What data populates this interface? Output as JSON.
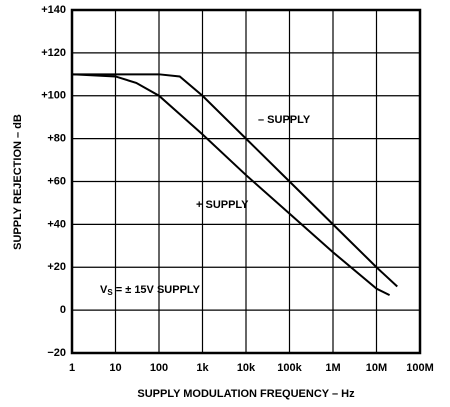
{
  "chart_data": {
    "type": "line",
    "ylabel": "SUPPLY REJECTION – dB",
    "xlabel": "SUPPLY MODULATION FREQUENCY – Hz",
    "xscale": "log",
    "grid": true,
    "xlim": [
      1,
      100000000
    ],
    "xticks": [
      1,
      10,
      100,
      {
        "value": 1000,
        "label": "1k"
      },
      {
        "value": 10000,
        "label": "10k"
      },
      {
        "value": 100000,
        "label": "100k"
      },
      {
        "value": 1000000,
        "label": "1M"
      },
      {
        "value": 10000000,
        "label": "10M"
      },
      {
        "value": 100000000,
        "label": "100M"
      }
    ],
    "ylim": [
      -20,
      140
    ],
    "yticks": [
      {
        "value": -20,
        "label": "−20"
      },
      0,
      {
        "value": 20,
        "label": "+20"
      },
      {
        "value": 40,
        "label": "+40"
      },
      {
        "value": 60,
        "label": "+60"
      },
      {
        "value": 80,
        "label": "+80"
      },
      {
        "value": 100,
        "label": "+100"
      },
      {
        "value": 120,
        "label": "+120"
      },
      {
        "value": 140,
        "label": "+140"
      }
    ],
    "series": [
      {
        "name": "– SUPPLY",
        "color": "#000000",
        "x": [
          1,
          100,
          300,
          1000,
          10000,
          100000,
          1000000,
          10000000,
          30000000
        ],
        "values": [
          110,
          110,
          109,
          100,
          80,
          60,
          40,
          20,
          11
        ]
      },
      {
        "name": "+ SUPPLY",
        "color": "#000000",
        "x": [
          1,
          10,
          30,
          100,
          1000,
          10000,
          100000,
          1000000,
          10000000,
          20000000
        ],
        "values": [
          110,
          109,
          106,
          100,
          82,
          63,
          45,
          27,
          10,
          7
        ]
      }
    ],
    "annotation": {
      "main": "V",
      "sub": "S",
      "rest": " =  ± 15V SUPPLY"
    }
  }
}
